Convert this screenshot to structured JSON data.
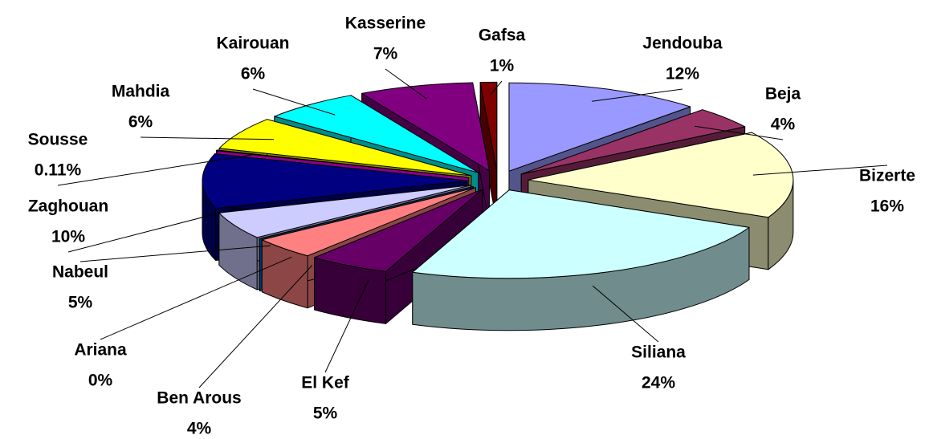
{
  "chart_data": {
    "type": "pie3d",
    "categories": [
      "Jendouba",
      "Beja",
      "Bizerte",
      "Siliana",
      "El Kef",
      "Ben Arous",
      "Ariana",
      "Nabeul",
      "Zaghouan",
      "Sousse",
      "Mahdia",
      "Kairouan",
      "Kasserine",
      "Gafsa"
    ],
    "values": [
      12,
      4,
      16,
      24,
      5,
      4,
      0,
      5,
      10,
      0.11,
      6,
      6,
      7,
      1
    ],
    "value_labels": [
      "12%",
      "4%",
      "16%",
      "24%",
      "5%",
      "4%",
      "0%",
      "5%",
      "10%",
      "0.11%",
      "6%",
      "6%",
      "7%",
      "1%"
    ],
    "colors": [
      "#9999ff",
      "#993366",
      "#ffffcc",
      "#ccffff",
      "#660066",
      "#ff8080",
      "#0066cc",
      "#ccccff",
      "#000080",
      "#ff00ff",
      "#ffff00",
      "#00ffff",
      "#800080",
      "#800000"
    ]
  }
}
